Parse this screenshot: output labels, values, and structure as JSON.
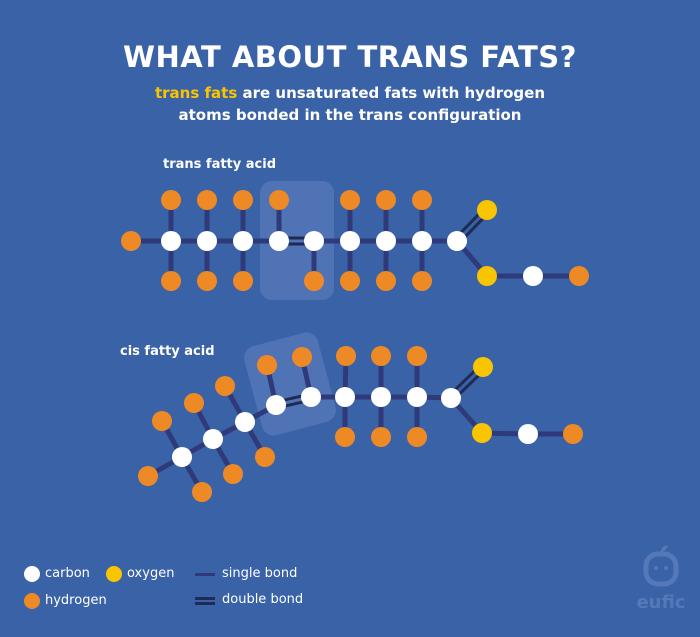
{
  "header": {
    "title": "WHAT ABOUT TRANS FATS?",
    "subtitle_highlight": "trans fats",
    "subtitle_rest_line1": " are unsaturated fats with hydrogen",
    "subtitle_line2": "atoms bonded in the trans configuration"
  },
  "molecules": [
    {
      "label": "trans fatty acid"
    },
    {
      "label": "cis fatty acid"
    }
  ],
  "legend": {
    "carbon": "carbon",
    "oxygen": "oxygen",
    "hydrogen": "hydrogen",
    "single_bond": "single bond",
    "double_bond": "double bond"
  },
  "logo": {
    "text": "eufic"
  },
  "colors": {
    "background": "#3a62a7",
    "carbon": "#ffffff",
    "oxygen": "#f9c400",
    "hydrogen": "#ee8a26",
    "single_bond": "#2e3a7a",
    "double_bond": "#1f2a55",
    "highlight": "#5577b8"
  }
}
